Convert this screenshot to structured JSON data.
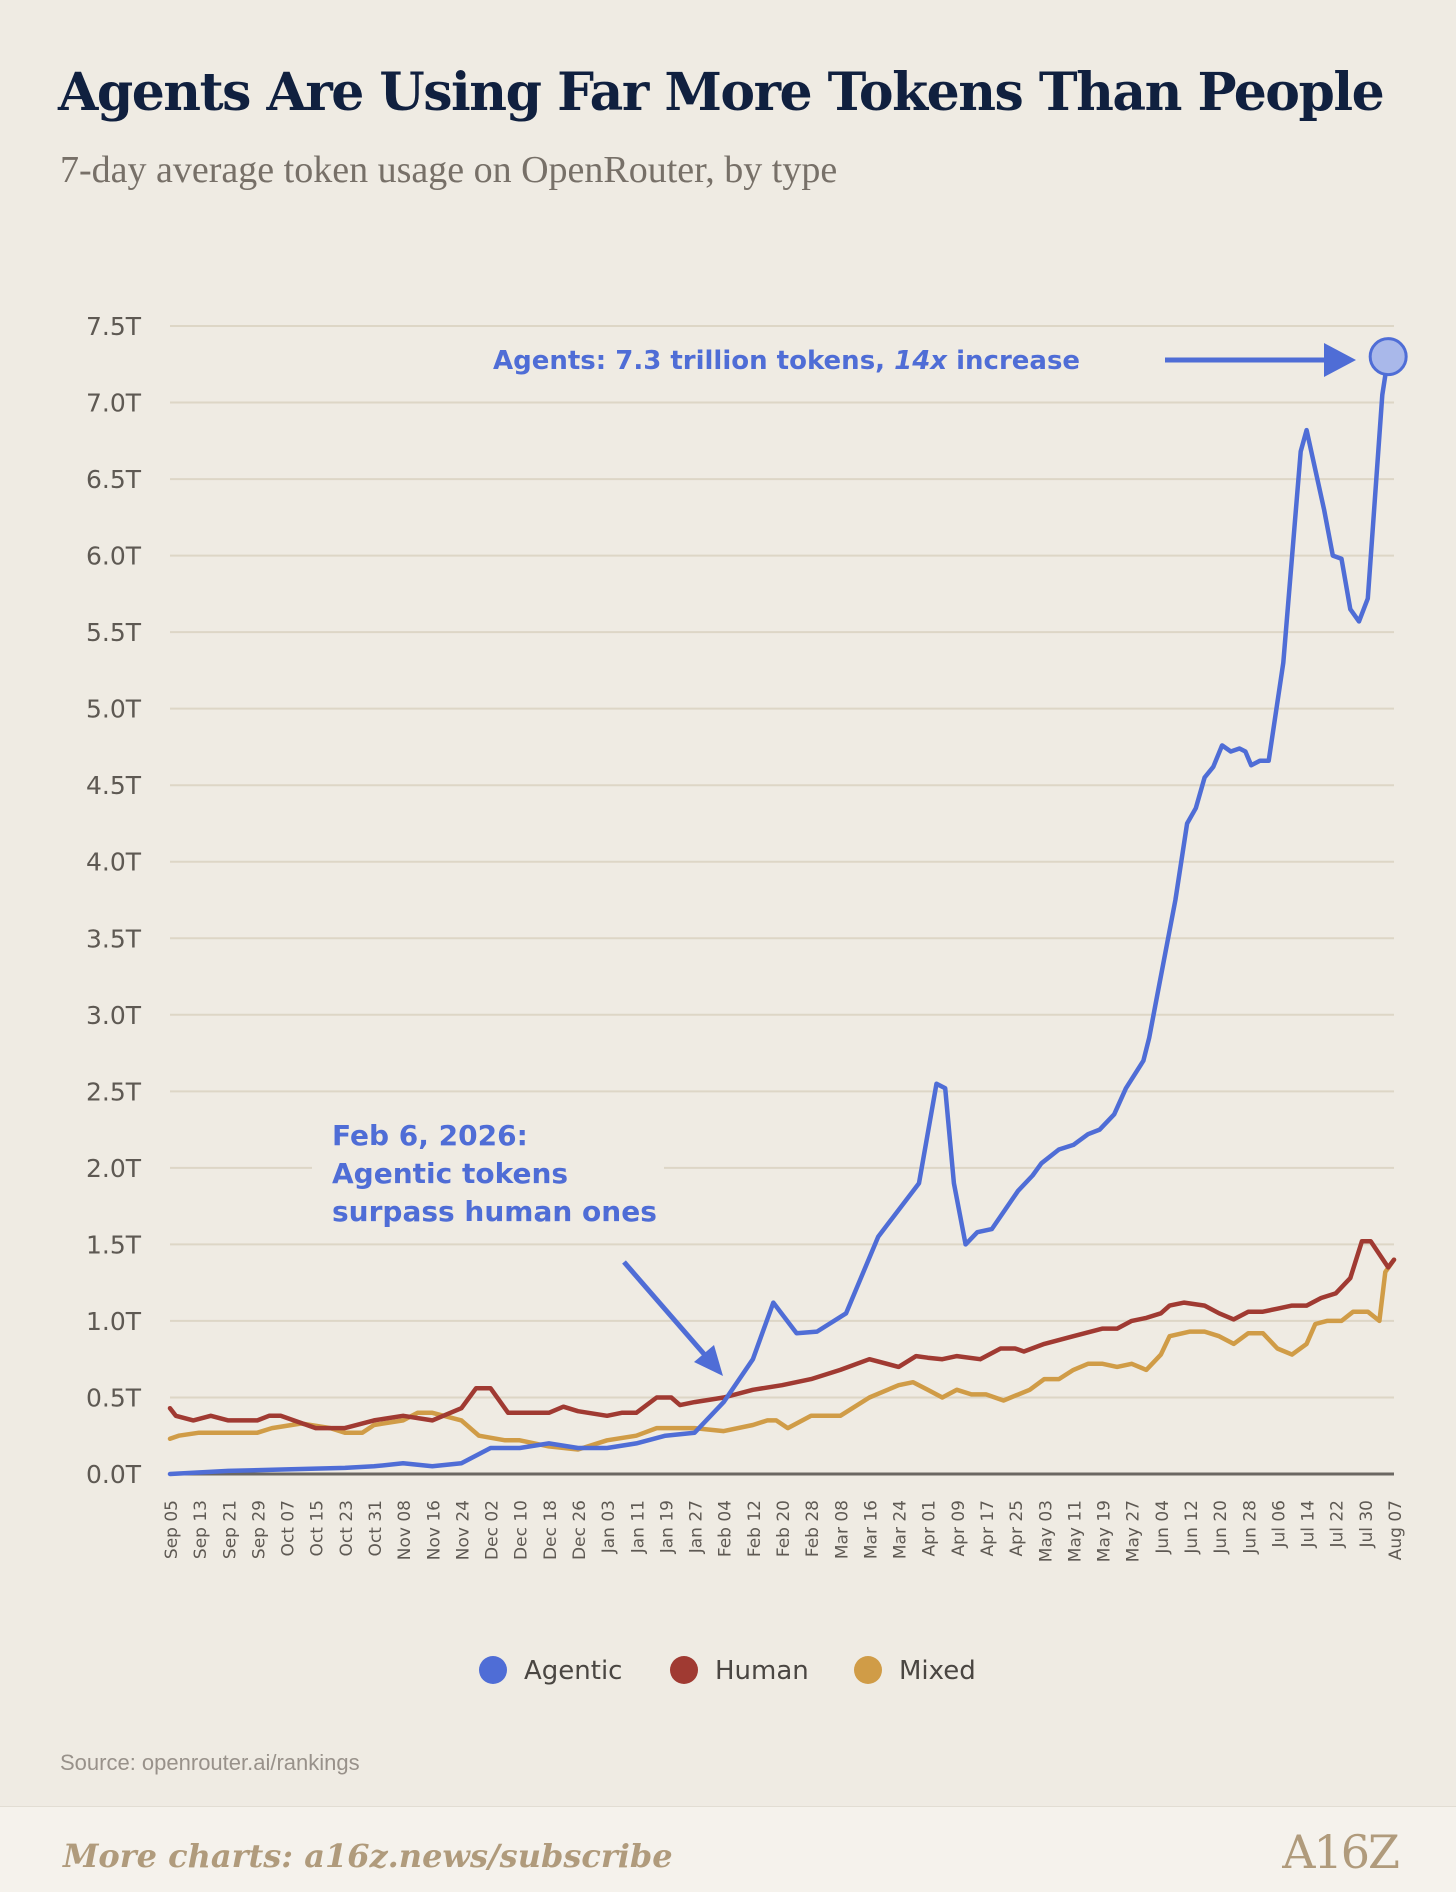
{
  "header": {
    "title": "Agents Are Using Far More Tokens Than People",
    "subtitle": "7-day average token usage on OpenRouter, by type"
  },
  "colors": {
    "agentic": "#4f6dd6",
    "human": "#a03a32",
    "mixed": "#d09c47",
    "grid": "#ddd6c6",
    "axis_text": "#5e5953",
    "annotation": "#4f6dd6"
  },
  "annotations": {
    "peak_label": "Agents: 7.3 trillion tokens, ",
    "peak_label_em": "14x",
    "peak_label_tail": " increase",
    "crossover_line1": "Feb 6, 2026:",
    "crossover_line2": "Agentic tokens",
    "crossover_line3": "surpass human ones"
  },
  "source": "Source: openrouter.ai/rankings",
  "footer": {
    "text": "More charts: a16z.news/subscribe",
    "logo": "A16Z"
  },
  "chart_data": {
    "type": "line",
    "title": "Agents Are Using Far More Tokens Than People",
    "subtitle": "7-day average token usage on OpenRouter, by type",
    "y_unit": "T",
    "ylim": [
      0,
      7.5
    ],
    "yticks": [
      "0.0T",
      "0.5T",
      "1.0T",
      "1.5T",
      "2.0T",
      "2.5T",
      "3.0T",
      "3.5T",
      "4.0T",
      "4.5T",
      "5.0T",
      "5.5T",
      "6.0T",
      "6.5T",
      "7.0T",
      "7.5T"
    ],
    "categories": [
      "Sep 05",
      "Sep 13",
      "Sep 21",
      "Sep 29",
      "Oct 07",
      "Oct 15",
      "Oct 23",
      "Oct 31",
      "Nov 08",
      "Nov 16",
      "Nov 24",
      "Dec 02",
      "Dec 10",
      "Dec 18",
      "Dec 26",
      "Jan 03",
      "Jan 11",
      "Jan 19",
      "Jan 27",
      "Feb 04",
      "Feb 12",
      "Feb 20",
      "Feb 28",
      "Mar 08",
      "Mar 16",
      "Mar 24",
      "Apr 01",
      "Apr 09",
      "Apr 17",
      "Apr 25",
      "May 03",
      "May 11",
      "May 19",
      "May 27",
      "Jun 04",
      "Jun 12",
      "Jun 20",
      "Jun 28",
      "Jul 06",
      "Jul 14",
      "Jul 22",
      "Jul 30",
      "Aug 07"
    ],
    "grid": true,
    "legend_position": "bottom-center",
    "series": [
      {
        "name": "Agentic",
        "points": [
          [
            0,
            0.0
          ],
          [
            2,
            0.02
          ],
          [
            4,
            0.03
          ],
          [
            6,
            0.04
          ],
          [
            7,
            0.05
          ],
          [
            8,
            0.07
          ],
          [
            9,
            0.05
          ],
          [
            10,
            0.07
          ],
          [
            11,
            0.17
          ],
          [
            12,
            0.17
          ],
          [
            13,
            0.2
          ],
          [
            14,
            0.17
          ],
          [
            15,
            0.17
          ],
          [
            16,
            0.2
          ],
          [
            17,
            0.25
          ],
          [
            18,
            0.27
          ],
          [
            19,
            0.47
          ],
          [
            20,
            0.75
          ],
          [
            20.7,
            1.12
          ],
          [
            21.5,
            0.92
          ],
          [
            22.2,
            0.93
          ],
          [
            23.2,
            1.05
          ],
          [
            24.3,
            1.55
          ],
          [
            25.7,
            1.9
          ],
          [
            26.3,
            2.55
          ],
          [
            26.6,
            2.52
          ],
          [
            26.9,
            1.9
          ],
          [
            27.3,
            1.5
          ],
          [
            27.7,
            1.58
          ],
          [
            28.2,
            1.6
          ],
          [
            29.1,
            1.85
          ],
          [
            29.6,
            1.95
          ],
          [
            29.9,
            2.03
          ],
          [
            30.5,
            2.12
          ],
          [
            31.0,
            2.15
          ],
          [
            31.5,
            2.22
          ],
          [
            31.9,
            2.25
          ],
          [
            32.4,
            2.35
          ],
          [
            32.8,
            2.52
          ],
          [
            33.4,
            2.7
          ],
          [
            33.6,
            2.85
          ],
          [
            33.8,
            3.05
          ],
          [
            34.5,
            3.75
          ],
          [
            34.9,
            4.25
          ],
          [
            35.2,
            4.35
          ],
          [
            35.5,
            4.55
          ],
          [
            35.8,
            4.62
          ],
          [
            36.1,
            4.76
          ],
          [
            36.4,
            4.72
          ],
          [
            36.7,
            4.74
          ],
          [
            36.9,
            4.72
          ],
          [
            37.1,
            4.63
          ],
          [
            37.4,
            4.66
          ],
          [
            37.7,
            4.66
          ],
          [
            38.2,
            5.3
          ],
          [
            38.8,
            6.68
          ],
          [
            39.0,
            6.82
          ],
          [
            39.6,
            6.3
          ],
          [
            39.9,
            6.0
          ],
          [
            40.2,
            5.98
          ],
          [
            40.5,
            5.65
          ],
          [
            40.8,
            5.57
          ],
          [
            41.1,
            5.72
          ],
          [
            41.6,
            7.05
          ],
          [
            41.8,
            7.3
          ]
        ]
      },
      {
        "name": "Human",
        "points": [
          [
            0,
            0.43
          ],
          [
            0.2,
            0.38
          ],
          [
            0.8,
            0.35
          ],
          [
            1.4,
            0.38
          ],
          [
            2,
            0.35
          ],
          [
            3,
            0.35
          ],
          [
            3.4,
            0.38
          ],
          [
            3.8,
            0.38
          ],
          [
            5,
            0.3
          ],
          [
            6,
            0.3
          ],
          [
            7,
            0.35
          ],
          [
            8,
            0.38
          ],
          [
            9,
            0.35
          ],
          [
            10,
            0.43
          ],
          [
            10.5,
            0.56
          ],
          [
            11,
            0.56
          ],
          [
            11.6,
            0.4
          ],
          [
            13,
            0.4
          ],
          [
            13.5,
            0.44
          ],
          [
            14,
            0.41
          ],
          [
            15,
            0.38
          ],
          [
            15.5,
            0.4
          ],
          [
            16,
            0.4
          ],
          [
            16.7,
            0.5
          ],
          [
            17.2,
            0.5
          ],
          [
            17.5,
            0.45
          ],
          [
            18,
            0.47
          ],
          [
            19,
            0.5
          ],
          [
            20,
            0.55
          ],
          [
            21,
            0.58
          ],
          [
            22,
            0.62
          ],
          [
            23,
            0.68
          ],
          [
            24,
            0.75
          ],
          [
            25,
            0.7
          ],
          [
            25.6,
            0.77
          ],
          [
            26,
            0.76
          ],
          [
            26.5,
            0.75
          ],
          [
            27,
            0.77
          ],
          [
            27.8,
            0.75
          ],
          [
            28.5,
            0.82
          ],
          [
            29,
            0.82
          ],
          [
            29.3,
            0.8
          ],
          [
            30,
            0.85
          ],
          [
            31,
            0.9
          ],
          [
            32,
            0.95
          ],
          [
            32.5,
            0.95
          ],
          [
            33,
            1.0
          ],
          [
            33.5,
            1.02
          ],
          [
            34,
            1.05
          ],
          [
            34.3,
            1.1
          ],
          [
            34.8,
            1.12
          ],
          [
            35.5,
            1.1
          ],
          [
            36,
            1.05
          ],
          [
            36.5,
            1.01
          ],
          [
            37,
            1.06
          ],
          [
            37.5,
            1.06
          ],
          [
            38,
            1.08
          ],
          [
            38.5,
            1.1
          ],
          [
            39,
            1.1
          ],
          [
            39.5,
            1.15
          ],
          [
            40,
            1.18
          ],
          [
            40.5,
            1.28
          ],
          [
            40.9,
            1.52
          ],
          [
            41.2,
            1.52
          ],
          [
            41.8,
            1.35
          ],
          [
            42,
            1.4
          ]
        ]
      },
      {
        "name": "Mixed",
        "points": [
          [
            0,
            0.23
          ],
          [
            0.3,
            0.25
          ],
          [
            1,
            0.27
          ],
          [
            2,
            0.27
          ],
          [
            3,
            0.27
          ],
          [
            3.5,
            0.3
          ],
          [
            4.5,
            0.33
          ],
          [
            5.5,
            0.3
          ],
          [
            6,
            0.27
          ],
          [
            6.6,
            0.27
          ],
          [
            7,
            0.32
          ],
          [
            8,
            0.35
          ],
          [
            8.5,
            0.4
          ],
          [
            9,
            0.4
          ],
          [
            10,
            0.35
          ],
          [
            10.6,
            0.25
          ],
          [
            11.5,
            0.22
          ],
          [
            12,
            0.22
          ],
          [
            13,
            0.18
          ],
          [
            14,
            0.16
          ],
          [
            15,
            0.22
          ],
          [
            16,
            0.25
          ],
          [
            16.7,
            0.3
          ],
          [
            17.5,
            0.3
          ],
          [
            18,
            0.3
          ],
          [
            19,
            0.28
          ],
          [
            20,
            0.32
          ],
          [
            20.5,
            0.35
          ],
          [
            20.8,
            0.35
          ],
          [
            21.2,
            0.3
          ],
          [
            22,
            0.38
          ],
          [
            23,
            0.38
          ],
          [
            24,
            0.5
          ],
          [
            25,
            0.58
          ],
          [
            25.5,
            0.6
          ],
          [
            26,
            0.55
          ],
          [
            26.5,
            0.5
          ],
          [
            27,
            0.55
          ],
          [
            27.5,
            0.52
          ],
          [
            28,
            0.52
          ],
          [
            28.6,
            0.48
          ],
          [
            29.5,
            0.55
          ],
          [
            30,
            0.62
          ],
          [
            30.5,
            0.62
          ],
          [
            31,
            0.68
          ],
          [
            31.5,
            0.72
          ],
          [
            32,
            0.72
          ],
          [
            32.5,
            0.7
          ],
          [
            33,
            0.72
          ],
          [
            33.5,
            0.68
          ],
          [
            34,
            0.78
          ],
          [
            34.3,
            0.9
          ],
          [
            35,
            0.93
          ],
          [
            35.5,
            0.93
          ],
          [
            36,
            0.9
          ],
          [
            36.5,
            0.85
          ],
          [
            37,
            0.92
          ],
          [
            37.5,
            0.92
          ],
          [
            38,
            0.82
          ],
          [
            38.5,
            0.78
          ],
          [
            39,
            0.85
          ],
          [
            39.3,
            0.98
          ],
          [
            39.7,
            1.0
          ],
          [
            40.2,
            1.0
          ],
          [
            40.6,
            1.06
          ],
          [
            41.1,
            1.06
          ],
          [
            41.5,
            1.0
          ],
          [
            41.7,
            1.32
          ],
          [
            42,
            1.4
          ]
        ]
      }
    ]
  }
}
